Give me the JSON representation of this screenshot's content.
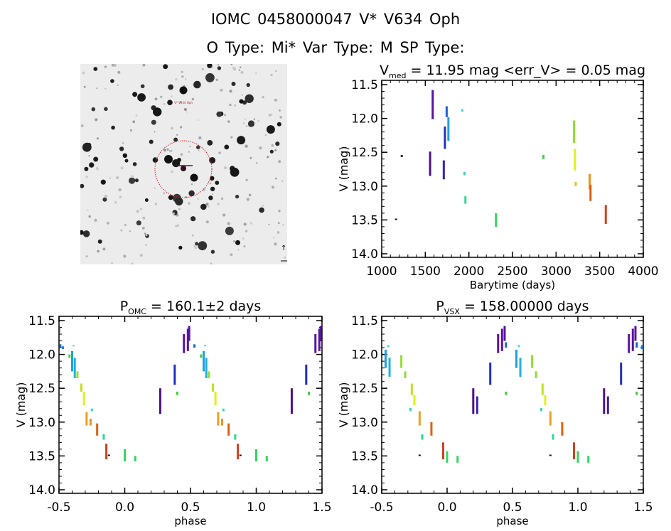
{
  "header": {
    "line1": "IOMC 0458000047    V* V634 Oph",
    "line2": "O Type: Mi*  Var Type: M   SP Type:"
  },
  "sky_image": {
    "target_label": "V* V634 Oph",
    "circle_color": "#cc2222"
  },
  "chart_data": [
    {
      "type": "scatter",
      "id": "lightcurve",
      "title_main": "V",
      "title_sub": "med",
      "title_rest": " = 11.95 mag <err_V> = 0.05 mag",
      "xlabel": "Barytime (days)",
      "ylabel": "V (mag)",
      "xlim": [
        1000,
        4000
      ],
      "ylim": [
        14.0,
        11.5
      ],
      "yreversed": true,
      "xticks": [
        1000,
        1500,
        2000,
        2500,
        3000,
        3500,
        4000
      ],
      "yticks": [
        11.5,
        12.0,
        12.5,
        13.0,
        13.5,
        14.0
      ],
      "xtick_labels": [
        "1000",
        "1500",
        "2000",
        "2500",
        "3000",
        "3500",
        "4000"
      ],
      "ytick_labels": [
        "11.5",
        "12.0",
        "12.5",
        "13.0",
        "13.5",
        "14.0"
      ],
      "segments": [
        {
          "x": 1165,
          "y0": 13.48,
          "y1": 13.5,
          "color": "#200020"
        },
        {
          "x": 1230,
          "y0": 12.54,
          "y1": 12.57,
          "color": "#3a0a5a"
        },
        {
          "x": 1555,
          "y0": 12.49,
          "y1": 12.85,
          "color": "#50108a"
        },
        {
          "x": 1585,
          "y0": 11.58,
          "y1": 12.01,
          "color": "#5a12a0"
        },
        {
          "x": 1712,
          "y0": 12.62,
          "y1": 12.9,
          "color": "#3a20b0"
        },
        {
          "x": 1725,
          "y0": 12.12,
          "y1": 12.45,
          "color": "#2030c0"
        },
        {
          "x": 1745,
          "y0": 11.82,
          "y1": 11.98,
          "color": "#2060d0"
        },
        {
          "x": 1765,
          "y0": 11.98,
          "y1": 12.33,
          "color": "#20a0e0"
        },
        {
          "x": 1925,
          "y0": 11.86,
          "y1": 11.9,
          "color": "#40e0e0"
        },
        {
          "x": 1950,
          "y0": 12.79,
          "y1": 12.84,
          "color": "#40d0c0"
        },
        {
          "x": 1960,
          "y0": 13.15,
          "y1": 13.26,
          "color": "#30d890"
        },
        {
          "x": 2310,
          "y0": 13.4,
          "y1": 13.6,
          "color": "#30d860"
        },
        {
          "x": 2855,
          "y0": 12.54,
          "y1": 12.6,
          "color": "#40d040"
        },
        {
          "x": 3205,
          "y0": 12.03,
          "y1": 12.36,
          "color": "#90e030"
        },
        {
          "x": 3215,
          "y0": 12.45,
          "y1": 12.77,
          "color": "#e0f020"
        },
        {
          "x": 3225,
          "y0": 12.94,
          "y1": 13.0,
          "color": "#f0c020"
        },
        {
          "x": 3385,
          "y0": 12.82,
          "y1": 13.05,
          "color": "#f09020"
        },
        {
          "x": 3395,
          "y0": 12.98,
          "y1": 13.22,
          "color": "#e06010"
        },
        {
          "x": 3570,
          "y0": 13.28,
          "y1": 13.56,
          "color": "#d04020"
        }
      ]
    },
    {
      "type": "scatter",
      "id": "phase-omc",
      "title_main": "P",
      "title_sub": "OMC",
      "title_rest": " = 160.1±2 days",
      "xlabel": "phase",
      "ylabel": "V (mag)",
      "xlim": [
        -0.5,
        1.5
      ],
      "ylim": [
        14.0,
        11.5
      ],
      "yreversed": true,
      "xticks": [
        -0.5,
        0.0,
        0.5,
        1.0,
        1.5
      ],
      "yticks": [
        11.5,
        12.0,
        12.5,
        13.0,
        13.5,
        14.0
      ],
      "xtick_labels": [
        "-0.5",
        "0.0",
        "0.5",
        "1.0",
        "1.5"
      ],
      "ytick_labels": [
        "11.5",
        "12.0",
        "12.5",
        "13.0",
        "13.5",
        "14.0"
      ],
      "segments": [
        {
          "x": -0.49,
          "y0": 11.85,
          "y1": 11.9,
          "color": "#2060d0"
        },
        {
          "x": -0.47,
          "y0": 11.88,
          "y1": 11.92,
          "color": "#2080e0"
        },
        {
          "x": -0.42,
          "y0": 12.0,
          "y1": 12.05,
          "color": "#40d040"
        },
        {
          "x": -0.4,
          "y0": 11.95,
          "y1": 12.25,
          "color": "#20a0e0"
        },
        {
          "x": -0.38,
          "y0": 12.05,
          "y1": 12.35,
          "color": "#20b0e0"
        },
        {
          "x": -0.39,
          "y0": 11.86,
          "y1": 11.88,
          "color": "#40e0e0"
        },
        {
          "x": -0.36,
          "y0": 12.25,
          "y1": 12.35,
          "color": "#90e030"
        },
        {
          "x": -0.33,
          "y0": 12.43,
          "y1": 12.55,
          "color": "#c0e020"
        },
        {
          "x": -0.31,
          "y0": 12.55,
          "y1": 12.75,
          "color": "#e0f020"
        },
        {
          "x": -0.29,
          "y0": 12.85,
          "y1": 13.05,
          "color": "#f0a020"
        },
        {
          "x": -0.26,
          "y0": 12.95,
          "y1": 13.05,
          "color": "#f09020"
        },
        {
          "x": -0.25,
          "y0": 12.8,
          "y1": 12.84,
          "color": "#40d0c0"
        },
        {
          "x": -0.21,
          "y0": 13.02,
          "y1": 13.2,
          "color": "#e06010"
        },
        {
          "x": -0.16,
          "y0": 13.18,
          "y1": 13.26,
          "color": "#30d890"
        },
        {
          "x": -0.14,
          "y0": 13.32,
          "y1": 13.55,
          "color": "#d04020"
        },
        {
          "x": -0.12,
          "y0": 13.48,
          "y1": 13.5,
          "color": "#200020"
        },
        {
          "x": 0.0,
          "y0": 13.4,
          "y1": 13.58,
          "color": "#30d860"
        },
        {
          "x": 0.08,
          "y0": 13.5,
          "y1": 13.58,
          "color": "#30d860"
        },
        {
          "x": 0.27,
          "y0": 12.5,
          "y1": 12.88,
          "color": "#50108a"
        },
        {
          "x": 0.38,
          "y0": 12.15,
          "y1": 12.45,
          "color": "#2030c0"
        },
        {
          "x": 0.4,
          "y0": 12.55,
          "y1": 12.6,
          "color": "#40d040"
        },
        {
          "x": 0.45,
          "y0": 11.7,
          "y1": 11.98,
          "color": "#5a12a0"
        },
        {
          "x": 0.48,
          "y0": 11.62,
          "y1": 11.95,
          "color": "#5a12a0"
        },
        {
          "x": 0.49,
          "y0": 11.58,
          "y1": 11.8,
          "color": "#5a12a0"
        },
        {
          "x": 0.53,
          "y0": 11.85,
          "y1": 11.9,
          "color": "#2060d0"
        },
        {
          "x": 0.58,
          "y0": 12.0,
          "y1": 12.05,
          "color": "#40d040"
        },
        {
          "x": 0.6,
          "y0": 11.95,
          "y1": 12.25,
          "color": "#20a0e0"
        },
        {
          "x": 0.62,
          "y0": 12.05,
          "y1": 12.35,
          "color": "#20b0e0"
        },
        {
          "x": 0.61,
          "y0": 11.86,
          "y1": 11.88,
          "color": "#40e0e0"
        },
        {
          "x": 0.64,
          "y0": 12.25,
          "y1": 12.35,
          "color": "#90e030"
        },
        {
          "x": 0.67,
          "y0": 12.43,
          "y1": 12.55,
          "color": "#c0e020"
        },
        {
          "x": 0.69,
          "y0": 12.55,
          "y1": 12.75,
          "color": "#e0f020"
        },
        {
          "x": 0.71,
          "y0": 12.85,
          "y1": 13.05,
          "color": "#f0a020"
        },
        {
          "x": 0.74,
          "y0": 12.95,
          "y1": 13.05,
          "color": "#f09020"
        },
        {
          "x": 0.75,
          "y0": 12.8,
          "y1": 12.84,
          "color": "#40d0c0"
        },
        {
          "x": 0.79,
          "y0": 13.02,
          "y1": 13.2,
          "color": "#e06010"
        },
        {
          "x": 0.84,
          "y0": 13.18,
          "y1": 13.26,
          "color": "#30d890"
        },
        {
          "x": 0.86,
          "y0": 13.32,
          "y1": 13.55,
          "color": "#d04020"
        },
        {
          "x": 0.88,
          "y0": 13.48,
          "y1": 13.5,
          "color": "#200020"
        },
        {
          "x": 1.0,
          "y0": 13.4,
          "y1": 13.58,
          "color": "#30d860"
        },
        {
          "x": 1.08,
          "y0": 13.5,
          "y1": 13.58,
          "color": "#30d860"
        },
        {
          "x": 1.27,
          "y0": 12.5,
          "y1": 12.88,
          "color": "#50108a"
        },
        {
          "x": 1.38,
          "y0": 12.15,
          "y1": 12.45,
          "color": "#2030c0"
        },
        {
          "x": 1.4,
          "y0": 12.55,
          "y1": 12.6,
          "color": "#40d040"
        },
        {
          "x": 1.45,
          "y0": 11.7,
          "y1": 11.98,
          "color": "#5a12a0"
        },
        {
          "x": 1.48,
          "y0": 11.62,
          "y1": 11.95,
          "color": "#5a12a0"
        },
        {
          "x": 1.49,
          "y0": 11.58,
          "y1": 11.8,
          "color": "#5a12a0"
        },
        {
          "x": -0.5,
          "y0": 11.58,
          "y1": 11.68,
          "color": "#5a12a0"
        }
      ]
    },
    {
      "type": "scatter",
      "id": "phase-vsx",
      "title_main": "P",
      "title_sub": "VSX",
      "title_rest": " = 158.00000 days",
      "xlabel": "phase",
      "ylabel": "V (mag)",
      "xlim": [
        -0.5,
        1.5
      ],
      "ylim": [
        14.0,
        11.5
      ],
      "yreversed": true,
      "xticks": [
        -0.5,
        0.0,
        0.5,
        1.0,
        1.5
      ],
      "yticks": [
        11.5,
        12.0,
        12.5,
        13.0,
        13.5,
        14.0
      ],
      "xtick_labels": [
        "-0.5",
        "0.0",
        "0.5",
        "1.0",
        "1.5"
      ],
      "ytick_labels": [
        "11.5",
        "12.0",
        "12.5",
        "13.0",
        "13.5",
        "14.0"
      ],
      "segments": [
        {
          "x": -0.47,
          "y0": 11.93,
          "y1": 12.2,
          "color": "#20a0e0"
        },
        {
          "x": -0.44,
          "y0": 12.05,
          "y1": 12.33,
          "color": "#20b0e0"
        },
        {
          "x": -0.45,
          "y0": 11.86,
          "y1": 11.89,
          "color": "#40e0e0"
        },
        {
          "x": -0.35,
          "y0": 12.01,
          "y1": 12.2,
          "color": "#90e030"
        },
        {
          "x": -0.32,
          "y0": 12.25,
          "y1": 12.35,
          "color": "#90e030"
        },
        {
          "x": -0.27,
          "y0": 12.43,
          "y1": 12.6,
          "color": "#c0e020"
        },
        {
          "x": -0.25,
          "y0": 12.6,
          "y1": 12.75,
          "color": "#e0f020"
        },
        {
          "x": -0.28,
          "y0": 12.79,
          "y1": 12.84,
          "color": "#40d0c0"
        },
        {
          "x": -0.21,
          "y0": 12.84,
          "y1": 13.05,
          "color": "#f0a020"
        },
        {
          "x": -0.12,
          "y0": 13.0,
          "y1": 13.2,
          "color": "#e06010"
        },
        {
          "x": -0.19,
          "y0": 13.18,
          "y1": 13.26,
          "color": "#30d890"
        },
        {
          "x": -0.21,
          "y0": 13.48,
          "y1": 13.5,
          "color": "#200020"
        },
        {
          "x": -0.03,
          "y0": 13.3,
          "y1": 13.55,
          "color": "#d04020"
        },
        {
          "x": 0.0,
          "y0": 13.43,
          "y1": 13.6,
          "color": "#30d860"
        },
        {
          "x": 0.08,
          "y0": 13.5,
          "y1": 13.6,
          "color": "#30d860"
        },
        {
          "x": 0.2,
          "y0": 12.5,
          "y1": 12.88,
          "color": "#50108a"
        },
        {
          "x": 0.23,
          "y0": 12.62,
          "y1": 12.88,
          "color": "#3a20b0"
        },
        {
          "x": 0.33,
          "y0": 12.12,
          "y1": 12.45,
          "color": "#2030c0"
        },
        {
          "x": 0.39,
          "y0": 11.7,
          "y1": 11.98,
          "color": "#5a12a0"
        },
        {
          "x": 0.42,
          "y0": 11.62,
          "y1": 11.95,
          "color": "#5a12a0"
        },
        {
          "x": 0.44,
          "y0": 11.58,
          "y1": 11.8,
          "color": "#5a12a0"
        },
        {
          "x": 0.45,
          "y0": 11.82,
          "y1": 11.9,
          "color": "#2060d0"
        },
        {
          "x": 0.45,
          "y0": 12.55,
          "y1": 12.6,
          "color": "#40d040"
        },
        {
          "x": 0.53,
          "y0": 11.93,
          "y1": 12.2,
          "color": "#20a0e0"
        },
        {
          "x": 0.56,
          "y0": 12.05,
          "y1": 12.33,
          "color": "#20b0e0"
        },
        {
          "x": 0.55,
          "y0": 11.86,
          "y1": 11.89,
          "color": "#40e0e0"
        },
        {
          "x": 0.65,
          "y0": 12.01,
          "y1": 12.2,
          "color": "#90e030"
        },
        {
          "x": 0.68,
          "y0": 12.25,
          "y1": 12.35,
          "color": "#90e030"
        },
        {
          "x": 0.73,
          "y0": 12.43,
          "y1": 12.6,
          "color": "#c0e020"
        },
        {
          "x": 0.75,
          "y0": 12.6,
          "y1": 12.75,
          "color": "#e0f020"
        },
        {
          "x": 0.72,
          "y0": 12.79,
          "y1": 12.84,
          "color": "#40d0c0"
        },
        {
          "x": 0.79,
          "y0": 12.84,
          "y1": 13.05,
          "color": "#f0a020"
        },
        {
          "x": 0.88,
          "y0": 13.0,
          "y1": 13.2,
          "color": "#e06010"
        },
        {
          "x": 0.81,
          "y0": 13.18,
          "y1": 13.26,
          "color": "#30d890"
        },
        {
          "x": 0.79,
          "y0": 13.48,
          "y1": 13.5,
          "color": "#200020"
        },
        {
          "x": 0.97,
          "y0": 13.3,
          "y1": 13.55,
          "color": "#d04020"
        },
        {
          "x": 1.0,
          "y0": 13.43,
          "y1": 13.6,
          "color": "#30d860"
        },
        {
          "x": 1.08,
          "y0": 13.5,
          "y1": 13.6,
          "color": "#30d860"
        },
        {
          "x": 1.2,
          "y0": 12.5,
          "y1": 12.88,
          "color": "#50108a"
        },
        {
          "x": 1.23,
          "y0": 12.62,
          "y1": 12.88,
          "color": "#3a20b0"
        },
        {
          "x": 1.33,
          "y0": 12.12,
          "y1": 12.45,
          "color": "#2030c0"
        },
        {
          "x": 1.39,
          "y0": 11.7,
          "y1": 11.98,
          "color": "#5a12a0"
        },
        {
          "x": 1.42,
          "y0": 11.62,
          "y1": 11.95,
          "color": "#5a12a0"
        },
        {
          "x": 1.44,
          "y0": 11.58,
          "y1": 11.8,
          "color": "#5a12a0"
        },
        {
          "x": 1.45,
          "y0": 11.82,
          "y1": 11.9,
          "color": "#2060d0"
        },
        {
          "x": 1.49,
          "y0": 11.86,
          "y1": 11.92,
          "color": "#2080e0"
        },
        {
          "x": 1.45,
          "y0": 12.55,
          "y1": 12.6,
          "color": "#40d040"
        }
      ]
    }
  ]
}
